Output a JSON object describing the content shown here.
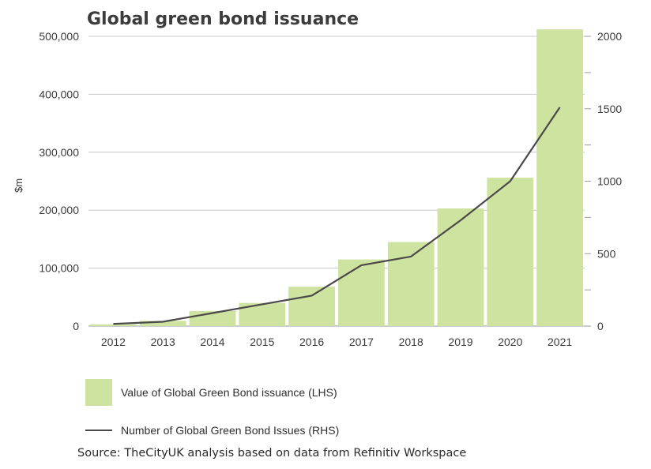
{
  "chart_data": {
    "type": "bar",
    "title": "Global green bond issuance",
    "ylabel": "$m",
    "categories": [
      "2012",
      "2013",
      "2014",
      "2015",
      "2016",
      "2017",
      "2018",
      "2019",
      "2020",
      "2021"
    ],
    "series": [
      {
        "name": "Value of Global Green Bond issuance (LHS)",
        "type": "bar",
        "axis": "left",
        "color": "#cfe3a0",
        "values": [
          3000,
          9000,
          26000,
          40000,
          68000,
          115000,
          145000,
          203000,
          256000,
          512000
        ]
      },
      {
        "name": "Number of Global Green Bond Issues (RHS)",
        "type": "line",
        "axis": "right",
        "color": "#4a4a4a",
        "values": [
          15,
          30,
          90,
          150,
          210,
          420,
          480,
          730,
          1000,
          1510
        ]
      }
    ],
    "ylim_left": [
      0,
      500000
    ],
    "ylim_right": [
      0,
      2000
    ],
    "yticks_left": [
      "0",
      "100,000",
      "200,000",
      "300,000",
      "400,000",
      "500,000"
    ],
    "yticks_right": [
      "0",
      "500",
      "1000",
      "1500",
      "2000"
    ],
    "grid": true,
    "legend_placement": "bottom"
  },
  "source": "Source: TheCityUK analysis based on data from Refinitiv Workspace"
}
